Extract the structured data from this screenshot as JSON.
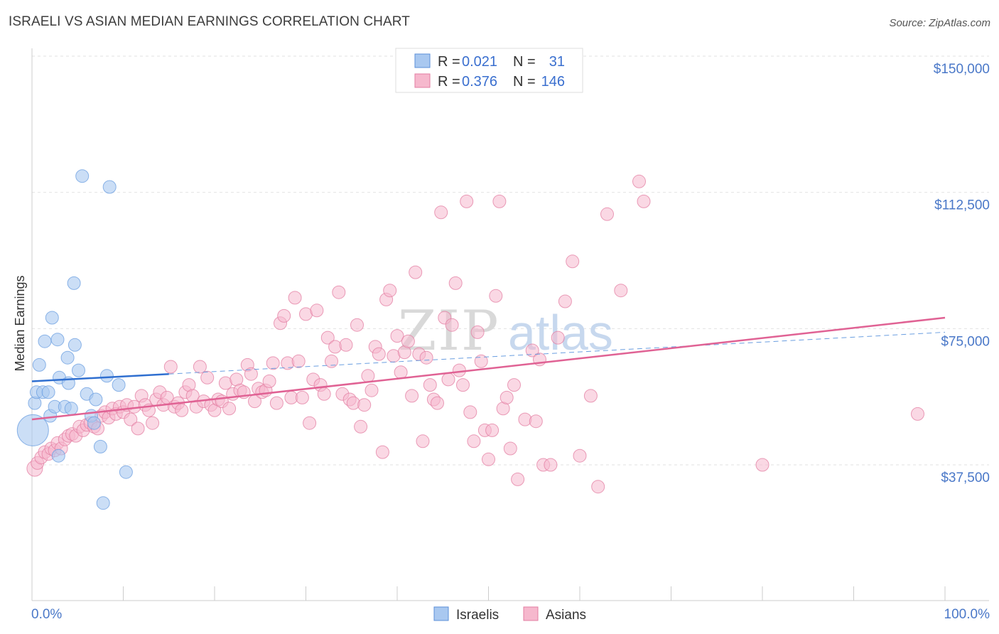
{
  "title": "ISRAELI VS ASIAN MEDIAN EARNINGS CORRELATION CHART",
  "source": "Source: ZipAtlas.com",
  "watermark": {
    "zip": "ZIP",
    "atlas": "atlas"
  },
  "legend": {
    "r_label": "R =",
    "n_label": "N =",
    "rows": [
      {
        "r": "0.021",
        "n": "31",
        "color": "#a9c8f0",
        "stroke": "#5b8fd8"
      },
      {
        "r": "0.376",
        "n": "146",
        "color": "#f6b8cd",
        "stroke": "#e37da2"
      }
    ]
  },
  "bottom_legend": [
    {
      "label": "Israelis",
      "color": "#a9c8f0",
      "stroke": "#5b8fd8"
    },
    {
      "label": "Asians",
      "color": "#f6b8cd",
      "stroke": "#e37da2"
    }
  ],
  "chart_data": {
    "type": "scatter",
    "title": "ISRAELI VS ASIAN MEDIAN EARNINGS CORRELATION CHART",
    "xlabel": "",
    "ylabel": "Median Earnings",
    "xlim": [
      0,
      100
    ],
    "ylim": [
      0,
      155000
    ],
    "x_tick_labels": [
      "0.0%",
      "100.0%"
    ],
    "y_ticks": [
      {
        "value": 37500,
        "label": "$37,500"
      },
      {
        "value": 75000,
        "label": "$75,000"
      },
      {
        "value": 112500,
        "label": "$112,500"
      },
      {
        "value": 150000,
        "label": "$150,000"
      }
    ],
    "grid": true,
    "legend_position": "top-center",
    "series": [
      {
        "name": "Israelis",
        "color": "#6a9ee0",
        "fill": "#a9c8f0",
        "r": 0.021,
        "n": 31,
        "trend": {
          "x0": 0,
          "y0": 60500,
          "x1": 15,
          "y1": 62500,
          "dash_x1": 100,
          "dash_y1": 74000
        },
        "points": [
          [
            0.1,
            47000,
            22
          ],
          [
            0.3,
            54500,
            9
          ],
          [
            0.5,
            57500,
            9
          ],
          [
            0.8,
            65000,
            9
          ],
          [
            1.2,
            57500,
            9
          ],
          [
            1.4,
            71500,
            9
          ],
          [
            1.8,
            57500,
            9
          ],
          [
            2.2,
            78000,
            9
          ],
          [
            2.0,
            51000,
            9
          ],
          [
            2.5,
            53500,
            9
          ],
          [
            2.8,
            72000,
            9
          ],
          [
            2.9,
            40000,
            9
          ],
          [
            3.0,
            61500,
            9
          ],
          [
            3.6,
            53500,
            9
          ],
          [
            3.9,
            67000,
            9
          ],
          [
            4.0,
            60000,
            9
          ],
          [
            4.3,
            53000,
            9
          ],
          [
            4.6,
            87500,
            9
          ],
          [
            4.7,
            70500,
            9
          ],
          [
            5.1,
            63500,
            9
          ],
          [
            5.5,
            117000,
            9
          ],
          [
            6.0,
            57000,
            9
          ],
          [
            6.5,
            51000,
            9
          ],
          [
            7.0,
            55500,
            9
          ],
          [
            7.5,
            42500,
            9
          ],
          [
            7.8,
            27000,
            9
          ],
          [
            8.2,
            62000,
            9
          ],
          [
            8.5,
            114000,
            9
          ],
          [
            9.5,
            59500,
            9
          ],
          [
            10.3,
            35500,
            9
          ],
          [
            6.8,
            49000,
            9
          ]
        ]
      },
      {
        "name": "Asians",
        "color": "#e37da2",
        "fill": "#f6b8cd",
        "r": 0.376,
        "n": 146,
        "trend": {
          "x0": 0,
          "y0": 50000,
          "x1": 100,
          "y1": 78000,
          "dash_x1": 100,
          "dash_y1": 74000
        },
        "points": [
          [
            0.3,
            36500,
            11
          ],
          [
            0.6,
            38000,
            9
          ],
          [
            1.0,
            39500,
            9
          ],
          [
            1.4,
            41000,
            9
          ],
          [
            1.8,
            40500,
            9
          ],
          [
            2.1,
            42000,
            9
          ],
          [
            2.5,
            41500,
            9
          ],
          [
            2.8,
            43500,
            9
          ],
          [
            3.2,
            42000,
            9
          ],
          [
            3.6,
            44500,
            9
          ],
          [
            4.0,
            45500,
            9
          ],
          [
            4.4,
            46000,
            9
          ],
          [
            4.8,
            45500,
            9
          ],
          [
            5.2,
            48000,
            9
          ],
          [
            5.6,
            47000,
            9
          ],
          [
            6.0,
            48500,
            9
          ],
          [
            6.4,
            49000,
            9
          ],
          [
            6.8,
            48000,
            9
          ],
          [
            7.2,
            47500,
            9
          ],
          [
            7.6,
            51000,
            9
          ],
          [
            8.0,
            52000,
            9
          ],
          [
            8.4,
            50500,
            9
          ],
          [
            8.8,
            53000,
            9
          ],
          [
            9.2,
            51500,
            9
          ],
          [
            9.6,
            53500,
            9
          ],
          [
            10.0,
            52000,
            9
          ],
          [
            10.4,
            54000,
            9
          ],
          [
            10.8,
            50000,
            9
          ],
          [
            11.2,
            53500,
            9
          ],
          [
            11.6,
            47500,
            9
          ],
          [
            12.0,
            56500,
            9
          ],
          [
            12.4,
            54000,
            9
          ],
          [
            12.8,
            52500,
            9
          ],
          [
            13.2,
            49000,
            9
          ],
          [
            13.6,
            55500,
            9
          ],
          [
            14.0,
            57500,
            9
          ],
          [
            14.4,
            54000,
            9
          ],
          [
            14.8,
            56000,
            9
          ],
          [
            15.2,
            64500,
            9
          ],
          [
            15.6,
            53500,
            9
          ],
          [
            16.0,
            54500,
            9
          ],
          [
            16.4,
            52500,
            9
          ],
          [
            16.8,
            57500,
            9
          ],
          [
            17.2,
            59500,
            9
          ],
          [
            17.6,
            56500,
            9
          ],
          [
            18.0,
            53500,
            9
          ],
          [
            18.4,
            64500,
            9
          ],
          [
            18.8,
            55000,
            9
          ],
          [
            19.2,
            61500,
            9
          ],
          [
            19.6,
            54000,
            9
          ],
          [
            20.0,
            52500,
            9
          ],
          [
            20.4,
            55500,
            9
          ],
          [
            20.8,
            55000,
            9
          ],
          [
            21.2,
            60000,
            9
          ],
          [
            21.6,
            53000,
            9
          ],
          [
            22.0,
            57000,
            9
          ],
          [
            22.4,
            61000,
            9
          ],
          [
            22.8,
            58000,
            9
          ],
          [
            23.2,
            57500,
            9
          ],
          [
            23.6,
            65000,
            9
          ],
          [
            24.0,
            62500,
            9
          ],
          [
            24.4,
            55000,
            9
          ],
          [
            24.8,
            58500,
            9
          ],
          [
            25.2,
            57500,
            9
          ],
          [
            25.6,
            58000,
            9
          ],
          [
            26.0,
            60500,
            9
          ],
          [
            26.4,
            65500,
            9
          ],
          [
            26.8,
            54500,
            9
          ],
          [
            27.2,
            76500,
            9
          ],
          [
            27.6,
            78500,
            9
          ],
          [
            28.0,
            65500,
            9
          ],
          [
            28.4,
            56000,
            9
          ],
          [
            28.8,
            83500,
            9
          ],
          [
            29.2,
            66000,
            9
          ],
          [
            29.6,
            56000,
            9
          ],
          [
            30.0,
            79000,
            9
          ],
          [
            30.4,
            49000,
            9
          ],
          [
            30.8,
            61000,
            9
          ],
          [
            31.2,
            80000,
            9
          ],
          [
            31.6,
            59500,
            9
          ],
          [
            32.0,
            57000,
            9
          ],
          [
            32.4,
            72500,
            9
          ],
          [
            32.8,
            66000,
            9
          ],
          [
            33.2,
            70000,
            9
          ],
          [
            33.6,
            85000,
            9
          ],
          [
            34.0,
            57000,
            9
          ],
          [
            34.4,
            70500,
            9
          ],
          [
            34.8,
            55500,
            9
          ],
          [
            35.2,
            54500,
            9
          ],
          [
            35.6,
            76000,
            9
          ],
          [
            36.0,
            48000,
            9
          ],
          [
            36.4,
            54000,
            9
          ],
          [
            36.8,
            62000,
            9
          ],
          [
            37.2,
            58000,
            9
          ],
          [
            37.6,
            70000,
            9
          ],
          [
            38.0,
            68000,
            9
          ],
          [
            38.4,
            41000,
            9
          ],
          [
            38.8,
            83000,
            9
          ],
          [
            39.2,
            85500,
            9
          ],
          [
            39.6,
            67500,
            9
          ],
          [
            40.0,
            73000,
            9
          ],
          [
            40.4,
            63000,
            9
          ],
          [
            40.8,
            68500,
            9
          ],
          [
            41.2,
            71500,
            9
          ],
          [
            41.6,
            56500,
            9
          ],
          [
            42.0,
            90500,
            9
          ],
          [
            42.4,
            68000,
            9
          ],
          [
            42.8,
            44000,
            9
          ],
          [
            43.2,
            67000,
            9
          ],
          [
            43.6,
            59500,
            9
          ],
          [
            44.0,
            55500,
            9
          ],
          [
            44.4,
            54500,
            9
          ],
          [
            44.8,
            107000,
            9
          ],
          [
            45.2,
            78000,
            9
          ],
          [
            45.6,
            61000,
            9
          ],
          [
            46.0,
            76000,
            9
          ],
          [
            46.4,
            87500,
            9
          ],
          [
            46.8,
            63500,
            9
          ],
          [
            47.2,
            59500,
            9
          ],
          [
            47.6,
            110000,
            9
          ],
          [
            48.0,
            52000,
            9
          ],
          [
            48.4,
            44000,
            9
          ],
          [
            48.8,
            74000,
            9
          ],
          [
            49.2,
            66000,
            9
          ],
          [
            49.6,
            47000,
            9
          ],
          [
            50.0,
            39000,
            9
          ],
          [
            50.4,
            47000,
            9
          ],
          [
            50.8,
            84000,
            9
          ],
          [
            51.2,
            110000,
            9
          ],
          [
            51.6,
            53000,
            9
          ],
          [
            52.0,
            56000,
            9
          ],
          [
            52.4,
            42000,
            9
          ],
          [
            52.8,
            59500,
            9
          ],
          [
            53.2,
            33500,
            9
          ],
          [
            54.0,
            50000,
            9
          ],
          [
            54.8,
            69000,
            9
          ],
          [
            55.2,
            49500,
            9
          ],
          [
            55.6,
            66500,
            9
          ],
          [
            56.0,
            37500,
            9
          ],
          [
            56.8,
            37500,
            9
          ],
          [
            57.6,
            72500,
            9
          ],
          [
            58.4,
            82500,
            9
          ],
          [
            59.2,
            93500,
            9
          ],
          [
            60.0,
            40000,
            9
          ],
          [
            61.2,
            56500,
            9
          ],
          [
            62.0,
            31500,
            9
          ],
          [
            63.0,
            106500,
            9
          ],
          [
            64.5,
            85500,
            9
          ],
          [
            66.5,
            115500,
            9
          ],
          [
            67.0,
            110000,
            9
          ],
          [
            80.0,
            37500,
            9
          ],
          [
            97.0,
            51500,
            9
          ]
        ]
      }
    ]
  }
}
